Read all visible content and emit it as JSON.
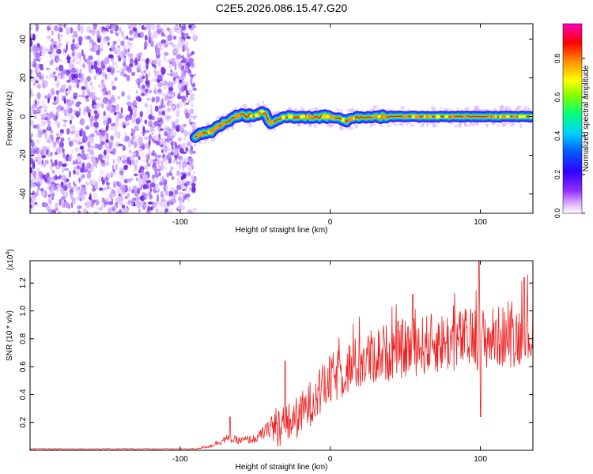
{
  "title": "C2E5.2026.086.15.47.G20",
  "chart_data": [
    {
      "type": "heatmap",
      "xlabel": "Height of straight line (km)",
      "ylabel": "Frequency (Hz)",
      "xlim": [
        -200,
        135
      ],
      "ylim": [
        -50,
        48
      ],
      "xticks": [
        -100,
        0,
        100
      ],
      "yticks": [
        40,
        20,
        0,
        -20,
        -40
      ],
      "colorbar": {
        "label": "Normalized spectral amplitude",
        "range": [
          0,
          0.98
        ],
        "ticks": [
          0.0,
          0.2,
          0.4,
          0.6,
          0.8
        ],
        "colors": [
          "#ffffff",
          "#e0b0ff",
          "#9030ff",
          "#3000ff",
          "#0060ff",
          "#00d0ff",
          "#00ff80",
          "#80ff00",
          "#ffff00",
          "#ff9000",
          "#ff0000",
          "#ff00c0"
        ]
      },
      "noise_region_x": [
        -200,
        -90
      ],
      "tone_track": {
        "x": [
          -90,
          -80,
          -70,
          -60,
          -50,
          -45,
          -40,
          -35,
          -30,
          -20,
          -10,
          0,
          10,
          20,
          40,
          60,
          80,
          100,
          135
        ],
        "y": [
          -10,
          -8,
          -3,
          1,
          0,
          3,
          -3,
          -2,
          0,
          0,
          0,
          0,
          -2,
          0,
          0,
          0,
          0,
          0,
          0
        ]
      },
      "grid": false
    },
    {
      "type": "line",
      "xlabel": "Height of straight line (km)",
      "ylabel": "SNR (10 * v/v)",
      "scale_label": "(x10",
      "scale_exp": "4",
      "xlim": [
        -200,
        135
      ],
      "ylim": [
        0,
        1.36
      ],
      "xticks": [
        -100,
        0,
        100
      ],
      "yticks": [
        0.2,
        0.4,
        0.6,
        0.8,
        1.0,
        1.2
      ],
      "series": [
        {
          "color": "#ee2222",
          "envelope": {
            "x": [
              -200,
              -90,
              -80,
              -70,
              -60,
              -50,
              -40,
              -30,
              -20,
              -10,
              0,
              10,
              20,
              30,
              40,
              50,
              60,
              70,
              80,
              90,
              100,
              110,
              120,
              135
            ],
            "y": [
              0.01,
              0.01,
              0.03,
              0.08,
              0.07,
              0.08,
              0.16,
              0.18,
              0.25,
              0.38,
              0.5,
              0.58,
              0.63,
              0.68,
              0.71,
              0.73,
              0.75,
              0.77,
              0.78,
              0.8,
              0.8,
              0.81,
              0.82,
              0.83
            ]
          },
          "peaks": [
            {
              "x": -67,
              "y": 0.24
            },
            {
              "x": -30,
              "y": 0.64
            },
            {
              "x": 55,
              "y": 1.12
            },
            {
              "x": 99,
              "y": 1.36
            },
            {
              "x": 100,
              "y": 0.24
            },
            {
              "x": 129,
              "y": 1.24
            }
          ]
        }
      ],
      "grid": false
    }
  ]
}
